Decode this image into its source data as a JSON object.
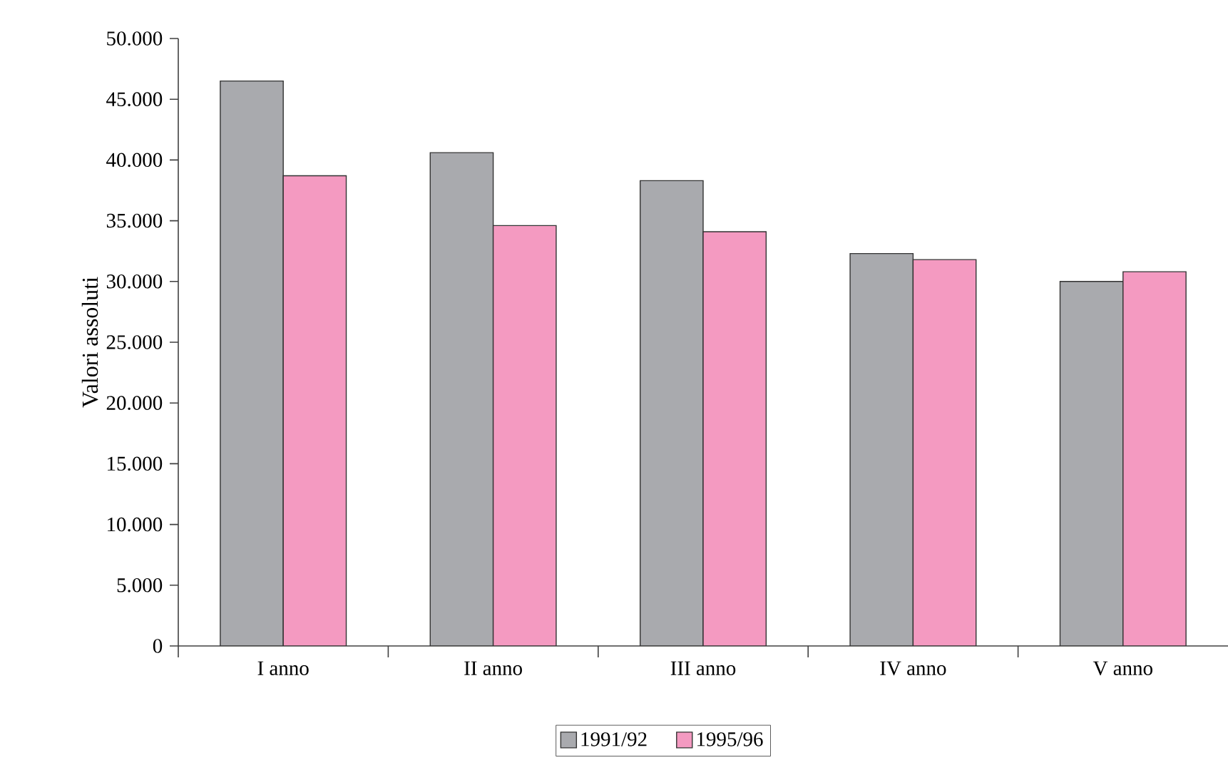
{
  "chart_data": {
    "type": "bar",
    "ylabel": "Valori assoluti",
    "categories": [
      "I anno",
      "II anno",
      "III anno",
      "IV anno",
      "V anno"
    ],
    "series": [
      {
        "name": "1991/92",
        "color": "#a9aaae",
        "values": [
          46500,
          40600,
          38300,
          32300,
          30000
        ]
      },
      {
        "name": "1995/96",
        "color": "#f49ac1",
        "values": [
          38700,
          34600,
          34100,
          31800,
          30800
        ]
      }
    ],
    "ylim": [
      0,
      50000
    ],
    "yticks": [
      {
        "value": 0,
        "label": "0"
      },
      {
        "value": 5000,
        "label": "5.000"
      },
      {
        "value": 10000,
        "label": "10.000"
      },
      {
        "value": 15000,
        "label": "15.000"
      },
      {
        "value": 20000,
        "label": "20.000"
      },
      {
        "value": 25000,
        "label": "25.000"
      },
      {
        "value": 30000,
        "label": "30.000"
      },
      {
        "value": 35000,
        "label": "35.000"
      },
      {
        "value": 40000,
        "label": "40.000"
      },
      {
        "value": 45000,
        "label": "45.000"
      },
      {
        "value": 50000,
        "label": "50.000"
      }
    ],
    "legend": "bottom",
    "grid": false
  }
}
